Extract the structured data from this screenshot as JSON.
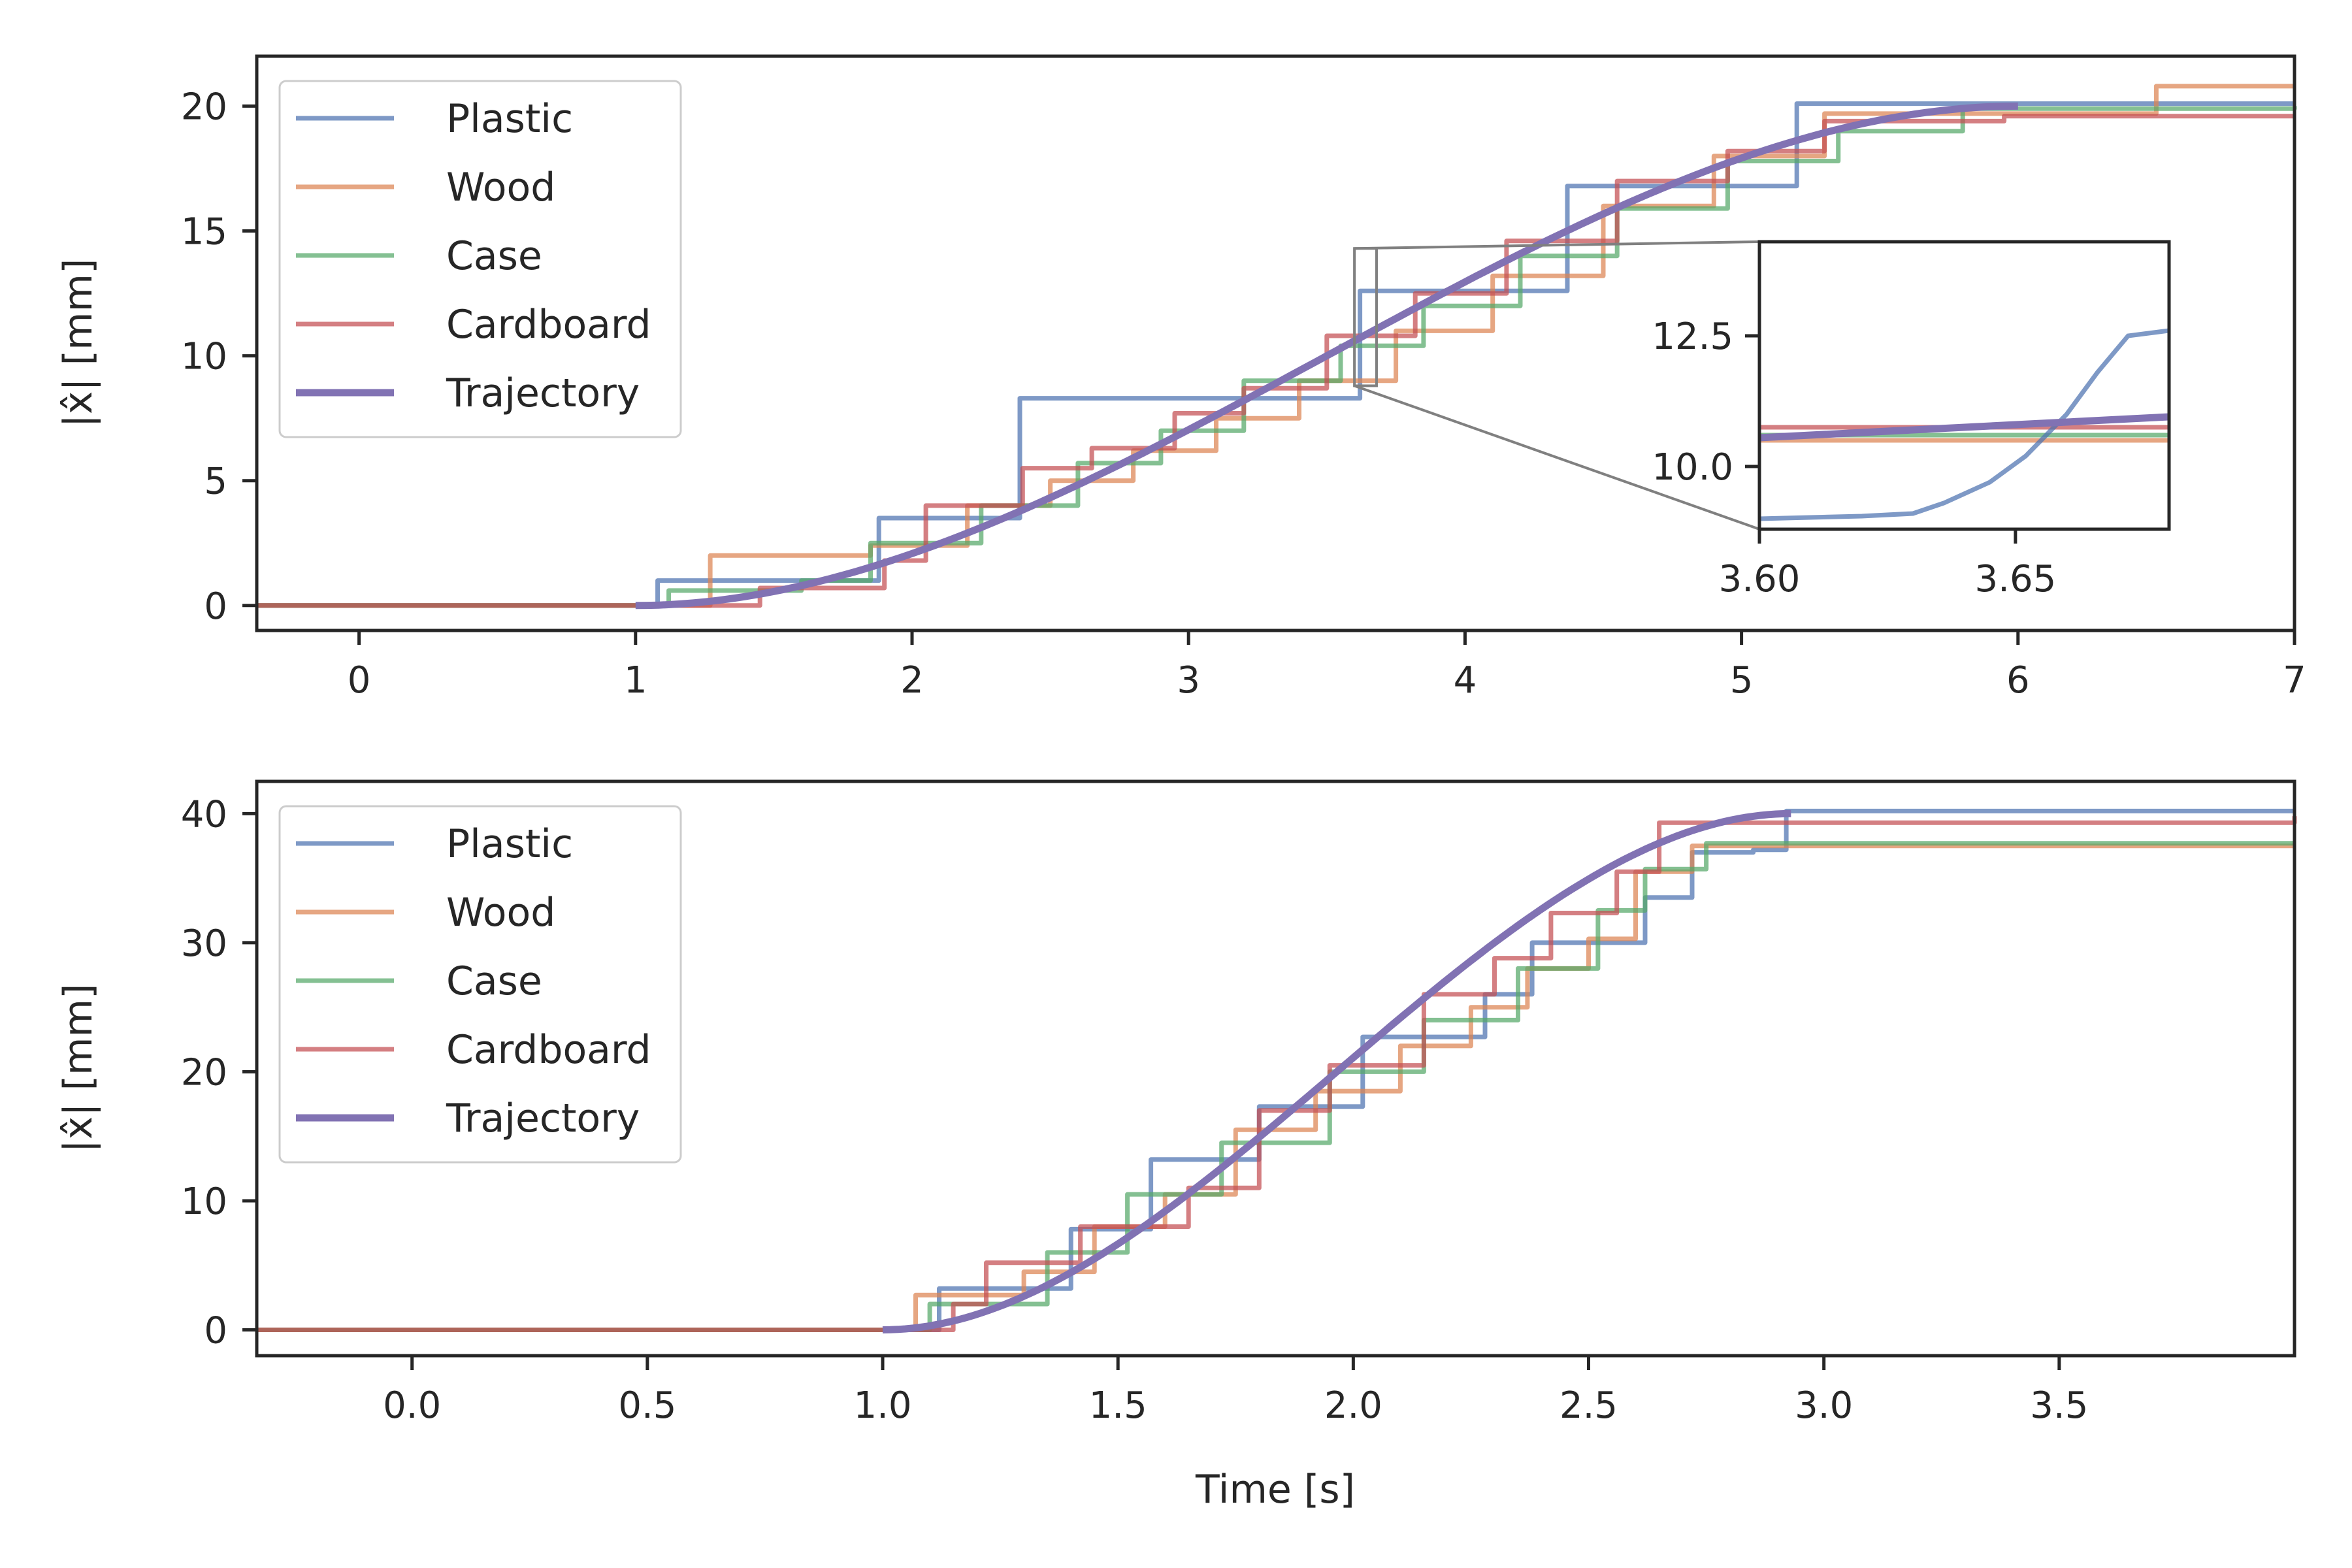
{
  "chart_data": [
    {
      "type": "line",
      "panel": "top",
      "title": "",
      "xlabel": "",
      "ylabel": "|x̂| [mm]",
      "xlim": [
        -0.37,
        7.0
      ],
      "ylim": [
        -1.0,
        22.0
      ],
      "xticks": [
        0,
        1,
        2,
        3,
        4,
        5,
        6,
        7
      ],
      "xtick_labels": [
        "0",
        "1",
        "2",
        "3",
        "4",
        "5",
        "6",
        "7"
      ],
      "yticks": [
        0,
        5,
        10,
        15,
        20
      ],
      "ytick_labels": [
        "0",
        "5",
        "10",
        "15",
        "20"
      ],
      "legend_position": "upper-left",
      "series": [
        {
          "name": "Plastic",
          "color": "#4c72b0",
          "kind": "steps",
          "steps": [
            [
              -0.37,
              0.0
            ],
            [
              1.08,
              1.0
            ],
            [
              1.88,
              3.5
            ],
            [
              2.39,
              8.3
            ],
            [
              3.62,
              12.6
            ],
            [
              4.37,
              16.8
            ],
            [
              5.2,
              20.1
            ]
          ]
        },
        {
          "name": "Wood",
          "color": "#dd8452",
          "kind": "steps",
          "steps": [
            [
              -0.37,
              0.0
            ],
            [
              1.27,
              2.0
            ],
            [
              1.85,
              2.4
            ],
            [
              2.2,
              4.0
            ],
            [
              2.5,
              5.0
            ],
            [
              2.8,
              6.2
            ],
            [
              3.1,
              7.5
            ],
            [
              3.4,
              9.0
            ],
            [
              3.75,
              11.0
            ],
            [
              4.1,
              13.2
            ],
            [
              4.5,
              16.0
            ],
            [
              4.9,
              18.0
            ],
            [
              5.3,
              19.7
            ],
            [
              6.5,
              20.8
            ]
          ]
        },
        {
          "name": "Case",
          "color": "#55a868",
          "kind": "steps",
          "steps": [
            [
              -0.37,
              0.0
            ],
            [
              1.12,
              0.6
            ],
            [
              1.6,
              1.0
            ],
            [
              1.85,
              2.5
            ],
            [
              2.25,
              4.0
            ],
            [
              2.6,
              5.7
            ],
            [
              2.9,
              7.0
            ],
            [
              3.2,
              9.0
            ],
            [
              3.55,
              10.4
            ],
            [
              3.85,
              12.0
            ],
            [
              4.2,
              14.0
            ],
            [
              4.55,
              15.9
            ],
            [
              4.95,
              17.8
            ],
            [
              5.35,
              19.0
            ],
            [
              5.8,
              19.9
            ],
            [
              7.0,
              20.0
            ]
          ]
        },
        {
          "name": "Cardboard",
          "color": "#c44e52",
          "kind": "steps",
          "steps": [
            [
              -0.37,
              0.0
            ],
            [
              1.45,
              0.7
            ],
            [
              1.9,
              1.8
            ],
            [
              2.05,
              4.0
            ],
            [
              2.4,
              5.5
            ],
            [
              2.65,
              6.3
            ],
            [
              2.95,
              7.7
            ],
            [
              3.2,
              8.7
            ],
            [
              3.5,
              10.8
            ],
            [
              3.82,
              12.5
            ],
            [
              4.15,
              14.6
            ],
            [
              4.55,
              17.0
            ],
            [
              4.95,
              18.2
            ],
            [
              5.3,
              19.4
            ],
            [
              5.95,
              19.6
            ],
            [
              7.0,
              19.6
            ]
          ]
        },
        {
          "name": "Trajectory",
          "color": "#8172b3",
          "kind": "smooth",
          "t_start": 1.0,
          "t_end": 6.0,
          "y_start": 0.0,
          "y_end": 20.0
        }
      ],
      "inset": {
        "xlim": [
          3.6,
          3.68
        ],
        "ylim": [
          8.8,
          14.3
        ],
        "xticks": [
          3.6,
          3.65
        ],
        "xtick_labels": [
          "3.60",
          "3.65"
        ],
        "yticks": [
          10.0,
          12.5
        ],
        "ytick_labels": [
          "10.0",
          "12.5"
        ],
        "plastic_points": [
          [
            3.6,
            9.0
          ],
          [
            3.62,
            9.05
          ],
          [
            3.63,
            9.1
          ],
          [
            3.636,
            9.3
          ],
          [
            3.645,
            9.7
          ],
          [
            3.652,
            10.2
          ],
          [
            3.66,
            11.0
          ],
          [
            3.666,
            11.8
          ],
          [
            3.672,
            12.5
          ],
          [
            3.68,
            12.6
          ]
        ],
        "flat_lines": [
          {
            "name": "Wood",
            "y": 10.5
          },
          {
            "name": "Case",
            "y": 10.6
          },
          {
            "name": "Cardboard",
            "y": 10.75
          }
        ],
        "trajectory_points": [
          [
            3.6,
            10.55
          ],
          [
            3.68,
            10.95
          ]
        ]
      }
    },
    {
      "type": "line",
      "panel": "bottom",
      "title": "",
      "xlabel": "Time [s]",
      "ylabel": "|x̂| [mm]",
      "xlim": [
        -0.33,
        4.0
      ],
      "ylim": [
        -2.0,
        42.5
      ],
      "xticks": [
        0.0,
        0.5,
        1.0,
        1.5,
        2.0,
        2.5,
        3.0,
        3.5
      ],
      "xtick_labels": [
        "0.0",
        "0.5",
        "1.0",
        "1.5",
        "2.0",
        "2.5",
        "3.0",
        "3.5"
      ],
      "yticks": [
        0,
        10,
        20,
        30,
        40
      ],
      "ytick_labels": [
        "0",
        "10",
        "20",
        "30",
        "40"
      ],
      "legend_position": "upper-left",
      "series": [
        {
          "name": "Plastic",
          "color": "#4c72b0",
          "kind": "steps",
          "steps": [
            [
              -0.33,
              0.0
            ],
            [
              1.12,
              3.2
            ],
            [
              1.4,
              7.8
            ],
            [
              1.57,
              13.2
            ],
            [
              1.8,
              17.3
            ],
            [
              2.02,
              22.7
            ],
            [
              2.28,
              26.0
            ],
            [
              2.38,
              30.0
            ],
            [
              2.62,
              33.5
            ],
            [
              2.72,
              37.0
            ],
            [
              2.85,
              37.2
            ],
            [
              2.92,
              40.2
            ],
            [
              4.0,
              40.2
            ]
          ]
        },
        {
          "name": "Wood",
          "color": "#dd8452",
          "kind": "steps",
          "steps": [
            [
              -0.33,
              0.0
            ],
            [
              1.07,
              2.7
            ],
            [
              1.3,
              4.5
            ],
            [
              1.45,
              8.0
            ],
            [
              1.6,
              10.5
            ],
            [
              1.75,
              15.5
            ],
            [
              1.92,
              18.5
            ],
            [
              2.1,
              22.0
            ],
            [
              2.25,
              25.0
            ],
            [
              2.37,
              28.0
            ],
            [
              2.5,
              30.3
            ],
            [
              2.6,
              35.5
            ],
            [
              2.72,
              37.5
            ],
            [
              4.0,
              37.5
            ]
          ]
        },
        {
          "name": "Case",
          "color": "#55a868",
          "kind": "steps",
          "steps": [
            [
              -0.33,
              0.0
            ],
            [
              1.1,
              2.0
            ],
            [
              1.35,
              6.0
            ],
            [
              1.52,
              10.5
            ],
            [
              1.72,
              14.5
            ],
            [
              1.95,
              20.0
            ],
            [
              2.15,
              24.0
            ],
            [
              2.35,
              28.0
            ],
            [
              2.52,
              32.5
            ],
            [
              2.62,
              35.7
            ],
            [
              2.75,
              37.7
            ],
            [
              4.0,
              37.7
            ]
          ]
        },
        {
          "name": "Cardboard",
          "color": "#c44e52",
          "kind": "steps",
          "steps": [
            [
              -0.33,
              0.0
            ],
            [
              1.15,
              2.0
            ],
            [
              1.22,
              5.2
            ],
            [
              1.42,
              8.0
            ],
            [
              1.65,
              11.0
            ],
            [
              1.8,
              17.0
            ],
            [
              1.95,
              20.5
            ],
            [
              2.15,
              26.0
            ],
            [
              2.3,
              28.8
            ],
            [
              2.42,
              32.3
            ],
            [
              2.56,
              35.5
            ],
            [
              2.65,
              39.3
            ],
            [
              4.0,
              39.8
            ]
          ]
        },
        {
          "name": "Trajectory",
          "color": "#8172b3",
          "kind": "smooth",
          "t_start": 1.0,
          "t_end": 2.93,
          "y_start": 0.0,
          "y_end": 40.0
        }
      ]
    }
  ]
}
